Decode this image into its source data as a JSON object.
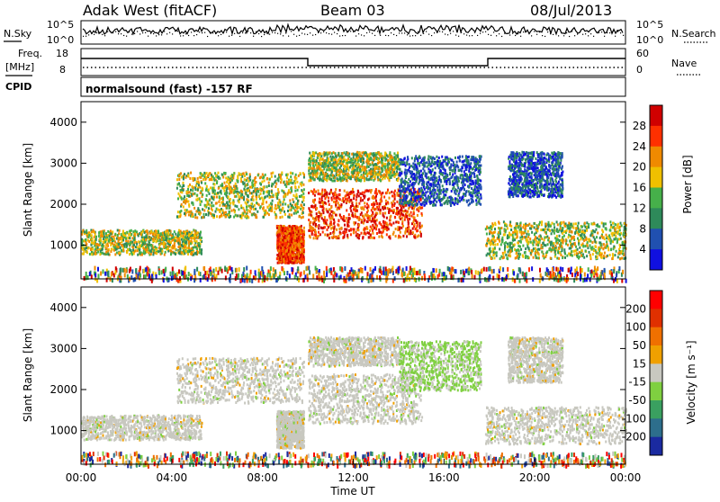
{
  "header": {
    "station": "Adak West (fitACF)",
    "beam": "Beam 03",
    "date": "08/Jul/2013"
  },
  "noise_panel": {
    "left_label": "N.Sky",
    "right_label": "N.Search",
    "left_ticks": [
      "10^5",
      "10^0"
    ],
    "right_ticks": [
      "10^5",
      "10^0"
    ]
  },
  "freq_panel": {
    "left_label_line1": "Freq.",
    "left_label_line2": "[MHz]",
    "right_label": "Nave",
    "left_ticks": [
      "18",
      "8"
    ],
    "right_ticks": [
      "60",
      "0"
    ],
    "cpid_label": "CPID",
    "cpid_text": "normalsound (fast) -157 RF"
  },
  "chart_data": [
    {
      "type": "heatmap",
      "name": "power",
      "ylabel": "Slant Range [km]",
      "xlabel": "",
      "ylim": [
        180,
        4500
      ],
      "y_ticks": [
        "1000",
        "2000",
        "3000",
        "4000"
      ],
      "y_tick_values": [
        1000,
        2000,
        3000,
        4000
      ],
      "colorbar_label": "Power [dB]",
      "colorbar_ticks": [
        "4",
        "8",
        "12",
        "16",
        "20",
        "24",
        "28"
      ],
      "colorbar_colors": [
        "#1010e0",
        "#2050b0",
        "#2e8a5a",
        "#46b04a",
        "#f0c000",
        "#f08a00",
        "#ff3000",
        "#d00000"
      ],
      "echo_bands": [
        {
          "t0": 0.0,
          "t1": 5.3,
          "r0": 800,
          "r1": 1400,
          "level": "mid"
        },
        {
          "t0": 4.2,
          "t1": 9.8,
          "r0": 1700,
          "r1": 2800,
          "level": "mid"
        },
        {
          "t0": 8.6,
          "t1": 9.8,
          "r0": 600,
          "r1": 1500,
          "level": "high"
        },
        {
          "t0": 10.0,
          "t1": 15.0,
          "r0": 1200,
          "r1": 2400,
          "level": "high"
        },
        {
          "t0": 10.0,
          "t1": 14.0,
          "r0": 2600,
          "r1": 3300,
          "level": "mid"
        },
        {
          "t0": 14.0,
          "t1": 17.6,
          "r0": 2000,
          "r1": 3200,
          "level": "low"
        },
        {
          "t0": 17.8,
          "t1": 24.0,
          "r0": 700,
          "r1": 1600,
          "level": "mid"
        },
        {
          "t0": 18.8,
          "t1": 21.2,
          "r0": 2200,
          "r1": 3300,
          "level": "low"
        },
        {
          "t0": 0.0,
          "t1": 24.0,
          "r0": 180,
          "r1": 500,
          "level": "scatter"
        }
      ]
    },
    {
      "type": "heatmap",
      "name": "velocity",
      "ylabel": "Slant Range [km]",
      "xlabel": "Time UT",
      "ylim": [
        180,
        4500
      ],
      "x_ticks": [
        "00:00",
        "04:00",
        "08:00",
        "12:00",
        "16:00",
        "20:00",
        "00:00"
      ],
      "x_tick_values": [
        0,
        4,
        8,
        12,
        16,
        20,
        24
      ],
      "y_ticks": [
        "1000",
        "2000",
        "3000",
        "4000"
      ],
      "y_tick_values": [
        1000,
        2000,
        3000,
        4000
      ],
      "colorbar_label": "Velocity [m s⁻¹]",
      "colorbar_ticks": [
        "200",
        "100",
        "50",
        "15",
        "-15",
        "-50",
        "-100",
        "-200"
      ],
      "colorbar_colors": [
        "#1a2aa0",
        "#2d6e8c",
        "#3aa060",
        "#7fd040",
        "#c8c8c0",
        "#f0a000",
        "#f07000",
        "#e03000",
        "#ff0000"
      ],
      "echo_bands": [
        {
          "t0": 0.0,
          "t1": 5.3,
          "r0": 800,
          "r1": 1400,
          "level": "grey"
        },
        {
          "t0": 4.2,
          "t1": 9.8,
          "r0": 1700,
          "r1": 2800,
          "level": "grey"
        },
        {
          "t0": 8.6,
          "t1": 9.8,
          "r0": 600,
          "r1": 1500,
          "level": "grey"
        },
        {
          "t0": 10.0,
          "t1": 15.0,
          "r0": 1200,
          "r1": 2400,
          "level": "grey"
        },
        {
          "t0": 10.0,
          "t1": 14.0,
          "r0": 2600,
          "r1": 3300,
          "level": "grey"
        },
        {
          "t0": 14.0,
          "t1": 17.6,
          "r0": 2000,
          "r1": 3200,
          "level": "green"
        },
        {
          "t0": 17.8,
          "t1": 24.0,
          "r0": 700,
          "r1": 1600,
          "level": "grey"
        },
        {
          "t0": 18.8,
          "t1": 21.2,
          "r0": 2200,
          "r1": 3300,
          "level": "grey"
        },
        {
          "t0": 0.0,
          "t1": 24.0,
          "r0": 180,
          "r1": 500,
          "level": "scatter"
        }
      ]
    }
  ]
}
